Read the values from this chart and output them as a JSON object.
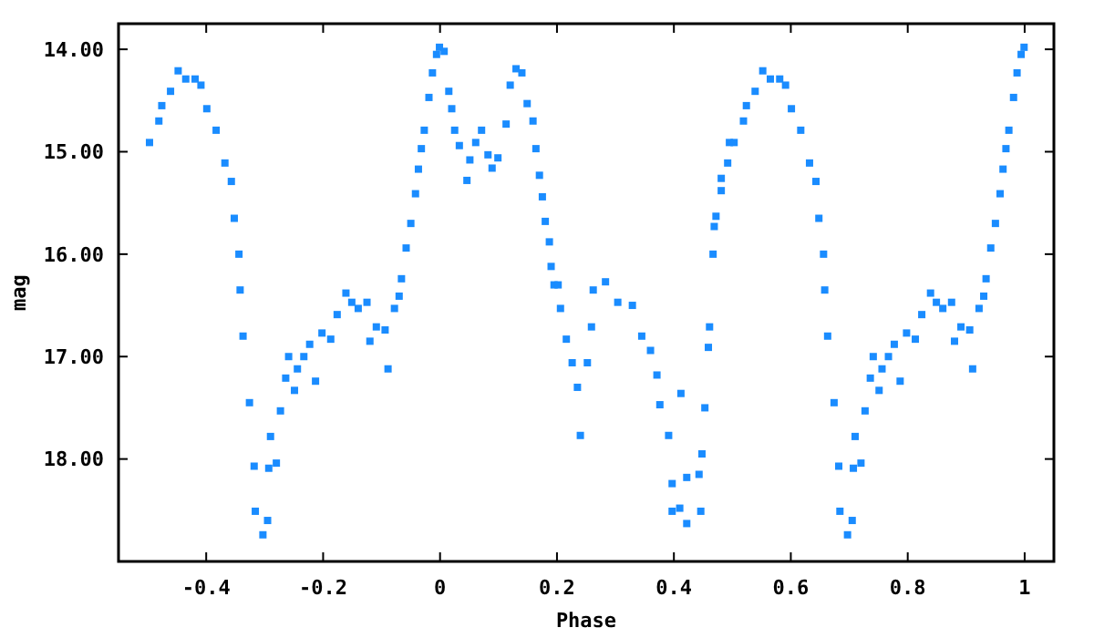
{
  "chart_data": {
    "type": "scatter",
    "xlabel": "Phase",
    "ylabel": "mag",
    "marker": "square",
    "xlim": [
      -0.55,
      1.05
    ],
    "ylim": [
      19.0,
      13.75
    ],
    "xticks": [
      -0.4,
      -0.2,
      0,
      0.2,
      0.4,
      0.6,
      0.8,
      1
    ],
    "yticks": [
      {
        "value": 14,
        "label": "14.00"
      },
      {
        "value": 15,
        "label": "15.00"
      },
      {
        "value": 16,
        "label": "16.00"
      },
      {
        "value": 17,
        "label": "17.00"
      },
      {
        "value": 18,
        "label": "18.00"
      }
    ],
    "series": [
      {
        "color": "#1a8cff",
        "x": [
          -0.497,
          -0.481,
          -0.476,
          -0.461,
          -0.448,
          -0.435,
          -0.419,
          -0.409,
          -0.399,
          -0.383,
          -0.368,
          -0.357,
          -0.352,
          -0.344,
          -0.342,
          -0.337,
          -0.326,
          -0.318,
          -0.316,
          -0.303,
          -0.295,
          -0.293,
          -0.29,
          -0.28,
          -0.273,
          -0.264,
          -0.259,
          -0.249,
          -0.244,
          -0.233,
          -0.223,
          -0.213,
          -0.202,
          -0.187,
          -0.176,
          -0.161,
          -0.151,
          -0.14,
          -0.125,
          -0.12,
          -0.109,
          -0.094,
          -0.089,
          -0.078,
          -0.07,
          -0.066,
          -0.058,
          -0.05,
          -0.042,
          -0.037,
          -0.032,
          -0.027,
          -0.019,
          -0.013,
          -0.006,
          -0.001,
          0.007,
          0.015,
          0.02,
          0.025,
          0.033,
          0.046,
          0.051,
          0.061,
          0.071,
          0.082,
          0.089,
          0.099,
          0.113,
          0.12,
          0.13,
          0.14,
          0.149,
          0.159,
          0.164,
          0.17,
          0.175,
          0.18,
          0.187,
          0.19,
          0.195,
          0.202,
          0.206,
          0.216,
          0.226,
          0.235,
          0.24,
          0.252,
          0.259,
          0.262,
          0.283,
          0.304,
          0.329,
          0.345,
          0.36,
          0.371,
          0.376,
          0.391,
          0.397,
          0.397,
          0.41,
          0.422,
          0.412,
          0.422,
          0.443,
          0.446,
          0.448,
          0.453,
          0.459,
          0.461,
          0.467,
          0.469,
          0.472,
          0.481,
          0.481,
          0.492,
          0.495,
          0.503,
          0.519,
          0.524,
          0.539,
          0.552,
          0.565,
          0.581,
          0.591,
          0.601,
          0.617,
          0.632,
          0.643,
          0.648,
          0.656,
          0.658,
          0.663,
          0.674,
          0.682,
          0.684,
          0.697,
          0.705,
          0.707,
          0.71,
          0.72,
          0.727,
          0.736,
          0.741,
          0.751,
          0.756,
          0.767,
          0.777,
          0.787,
          0.798,
          0.813,
          0.824,
          0.839,
          0.849,
          0.86,
          0.875,
          0.88,
          0.891,
          0.906,
          0.911,
          0.922,
          0.93,
          0.934,
          0.942,
          0.95,
          0.958,
          0.963,
          0.968,
          0.973,
          0.981,
          0.987,
          0.994,
          0.999
        ],
        "values": [
          14.91,
          14.7,
          14.55,
          14.41,
          14.21,
          14.29,
          14.29,
          14.35,
          14.58,
          14.79,
          15.11,
          15.29,
          15.65,
          16.0,
          16.35,
          16.8,
          17.45,
          18.07,
          18.51,
          18.74,
          18.6,
          18.09,
          17.78,
          18.04,
          17.53,
          17.21,
          17.0,
          17.33,
          17.12,
          17.0,
          16.88,
          17.24,
          16.77,
          16.83,
          16.59,
          16.38,
          16.47,
          16.53,
          16.47,
          16.85,
          16.71,
          16.74,
          17.12,
          16.53,
          16.41,
          16.24,
          15.94,
          15.7,
          15.41,
          15.17,
          14.97,
          14.79,
          14.47,
          14.23,
          14.05,
          13.98,
          14.02,
          14.41,
          14.58,
          14.79,
          14.94,
          15.28,
          15.08,
          14.91,
          14.79,
          15.03,
          15.16,
          15.06,
          14.73,
          14.35,
          14.19,
          14.23,
          14.53,
          14.7,
          14.97,
          15.23,
          15.44,
          15.68,
          15.88,
          16.12,
          16.3,
          16.3,
          16.53,
          16.83,
          17.06,
          17.3,
          17.77,
          17.06,
          16.71,
          16.35,
          16.27,
          16.47,
          16.5,
          16.8,
          16.94,
          17.18,
          17.47,
          17.77,
          18.24,
          18.51,
          18.48,
          18.63,
          17.36,
          18.18,
          18.15,
          18.51,
          17.95,
          17.5,
          16.91,
          16.71,
          16.0,
          15.73,
          15.63,
          15.38,
          15.26,
          15.11,
          14.91,
          14.91,
          14.7,
          14.55,
          14.41,
          14.21,
          14.29,
          14.29,
          14.35,
          14.58,
          14.79,
          15.11,
          15.29,
          15.65,
          16.0,
          16.35,
          16.8,
          17.45,
          18.07,
          18.51,
          18.74,
          18.6,
          18.09,
          17.78,
          18.04,
          17.53,
          17.21,
          17.0,
          17.33,
          17.12,
          17.0,
          16.88,
          17.24,
          16.77,
          16.83,
          16.59,
          16.38,
          16.47,
          16.53,
          16.47,
          16.85,
          16.71,
          16.74,
          17.12,
          16.53,
          16.41,
          16.24,
          15.94,
          15.7,
          15.41,
          15.17,
          14.97,
          14.79,
          14.47,
          14.23,
          14.05,
          13.98
        ]
      }
    ]
  }
}
